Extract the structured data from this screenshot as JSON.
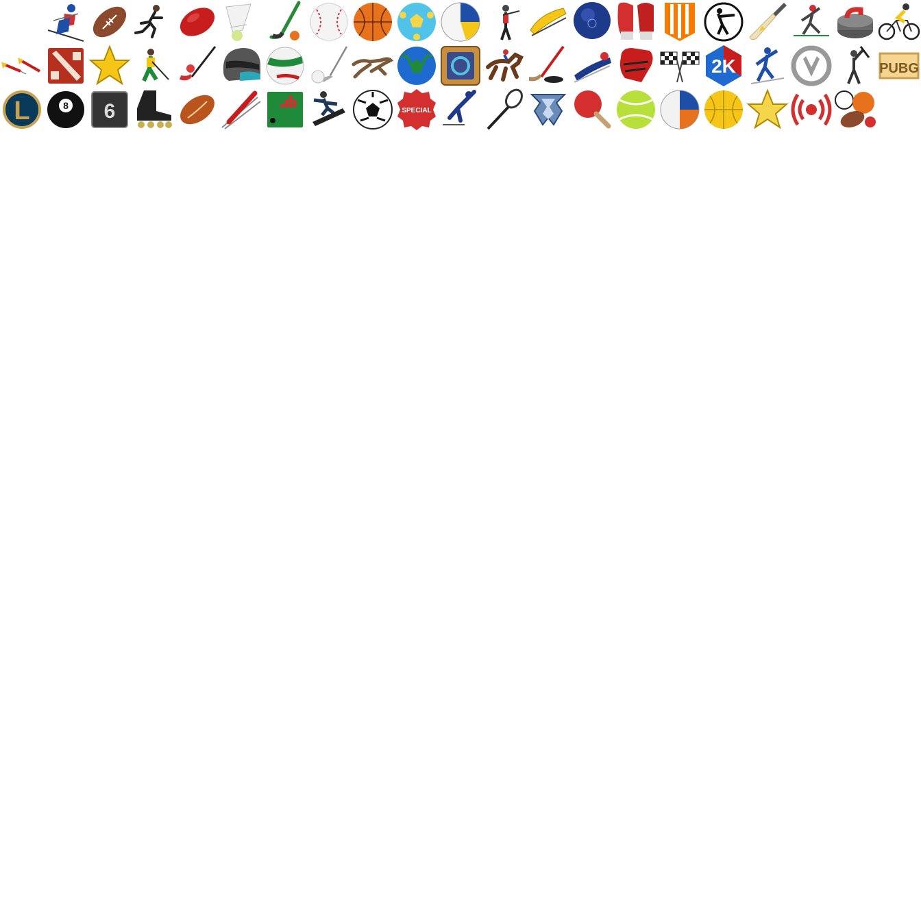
{
  "sheet": {
    "rows": [
      [
        "",
        "alpine-skiing-icon",
        "american-football-icon",
        "athletics-icon",
        "aussie-rules-icon",
        "badminton-icon",
        "bandy-icon",
        "baseball-icon",
        "basketball-icon",
        "beach-soccer-icon",
        "beach-volleyball-icon",
        "biathlon-icon",
        "bobsleigh-icon",
        "bowls-icon",
        "boxing-icon",
        "call-of-duty-icon",
        "counter-strike-icon",
        "cricket-icon",
        "cross-country-icon",
        "curling-icon",
        "cycling-icon"
      ],
      [
        "darts-icon",
        "dota-icon",
        "favorites-star-icon",
        "field-hockey-icon",
        "floorball-icon",
        "formula-racing-helmet-icon",
        "gaelic-sports-icon",
        "golf-icon",
        "greyhounds-icon",
        "handball-icon",
        "hearthstone-icon",
        "horse-racing-icon",
        "ice-hockey-icon",
        "luge-icon",
        "mma-glove-icon",
        "motorsport-flags-icon",
        "nba2k-icon",
        "nordic-combined-icon",
        "overwatch-icon",
        "pesapallo-icon",
        "pubg-icon"
      ],
      [
        "league-of-legends-icon",
        "pool-8-ball-icon",
        "rainbow-six-icon",
        "rink-hockey-icon",
        "rugby-icon",
        "ski-jumping-icon",
        "snooker-icon",
        "snowboard-icon",
        "soccer-icon",
        "specials-icon",
        "speed-skating-icon",
        "squash-icon",
        "starcraft-icon",
        "table-tennis-icon",
        "tennis-icon",
        "volleyball-icon",
        "water-polo-icon",
        "star-icon",
        "live-icon",
        "multi-sport-icon"
      ]
    ],
    "labels": {
      "nba2k": "2K",
      "pool": "8",
      "rainbow": "6",
      "special": "SPECIAL",
      "pubg": "PUBG",
      "lol": "L"
    },
    "colors": {
      "red": "#d32f2f",
      "orange": "#e8711c",
      "brown": "#8b4a2b",
      "yellow": "#f5c518",
      "blue": "#1e4fa8",
      "green": "#1f8a3a"
    }
  }
}
